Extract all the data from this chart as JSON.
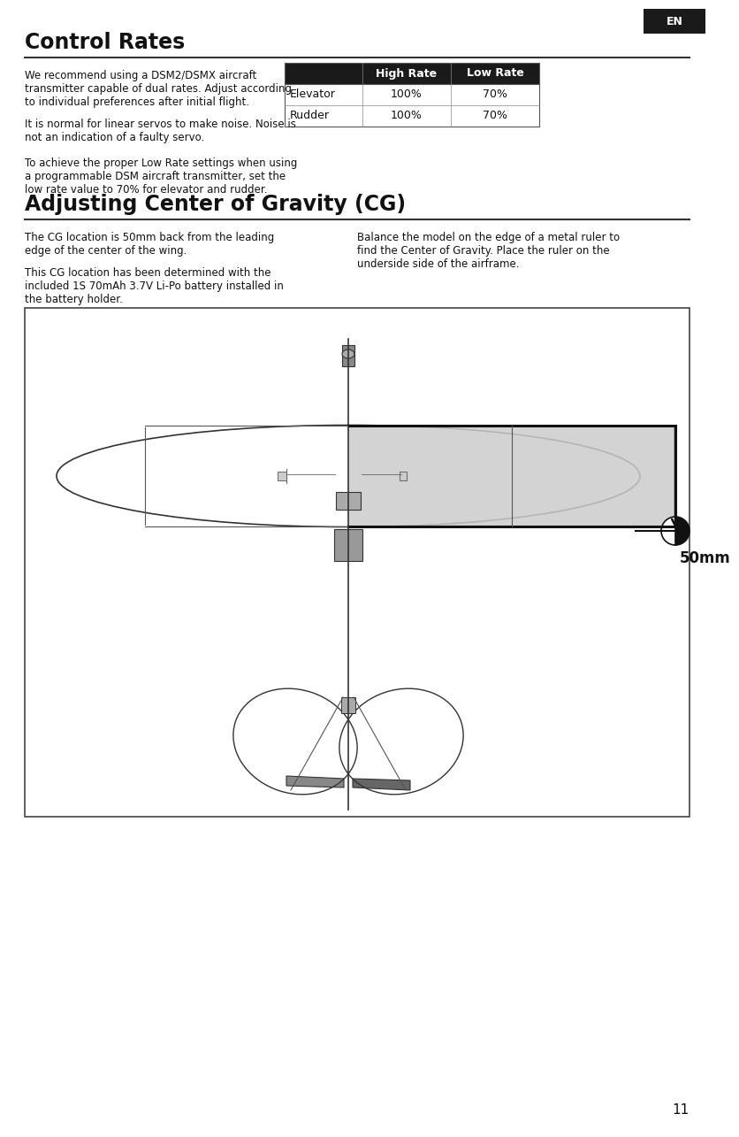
{
  "page_bg": "#ffffff",
  "page_num": "11",
  "en_label": "EN",
  "section1_title": "Control Rates",
  "section2_title": "Adjusting Center of Gravity (CG)",
  "para1": "We recommend using a DSM2/DSMX aircraft\ntransmitter capable of dual rates. Adjust according\nto individual preferences after initial flight.",
  "para2": "It is normal for linear servos to make noise. Noise is\nnot an indication of a faulty servo.",
  "para3": "To achieve the proper Low Rate settings when using\na programmable DSM aircraft transmitter, set the\nlow rate value to 70% for elevator and rudder.",
  "para4_left": "The CG location is 50mm back from the leading\nedge of the center of the wing.",
  "para5_left": "This CG location has been determined with the\nincluded 1S 70mAh 3.7V Li-Po battery installed in\nthe battery holder.",
  "para4_right": "Balance the model on the edge of a metal ruler to\nfind the Center of Gravity. Place the ruler on the\nunderside side of the airframe.",
  "table_header_bg": "#1a1a1a",
  "table_header_color": "#ffffff",
  "table_header2": "High Rate",
  "table_header3": "Low Rate",
  "table_row1": [
    "Elevator",
    "100%",
    "70%"
  ],
  "table_row2": [
    "Rudder",
    "100%",
    "70%"
  ],
  "cg_label": "50mm",
  "img_border_color": "#444444",
  "gray_shading": "#cccccc"
}
